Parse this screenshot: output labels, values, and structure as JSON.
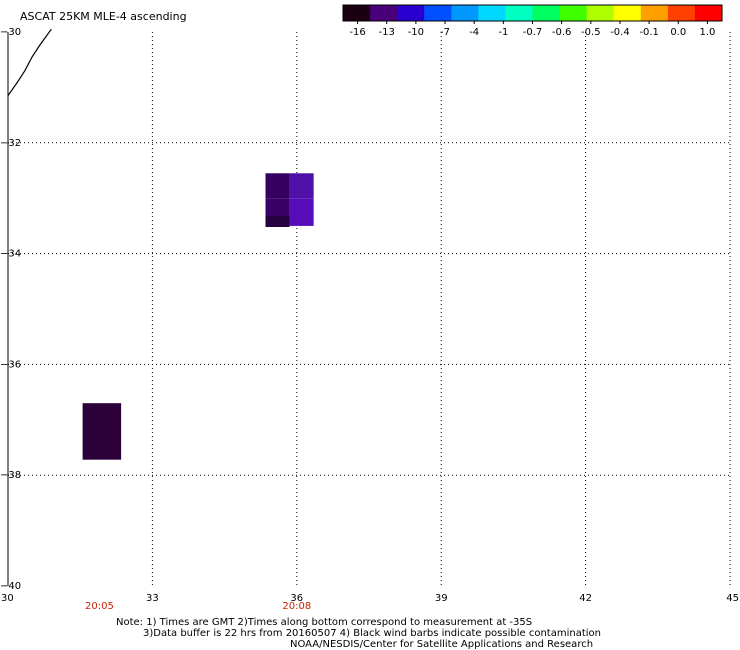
{
  "title": "ASCAT 25KM MLE-4 ascending",
  "colorbar": {
    "labels": [
      "-16",
      "-13",
      "-10",
      "-7",
      "-4",
      "-1",
      "-0.7",
      "-0.6",
      "-0.5",
      "-0.4",
      "-0.1",
      "0.0",
      "1.0"
    ],
    "colors": [
      "#1a0010",
      "#4a007a",
      "#2a00d0",
      "#0050ff",
      "#0098ff",
      "#00d8ff",
      "#00ffc0",
      "#00ff60",
      "#40ff00",
      "#b0ff00",
      "#ffff00",
      "#ffa000",
      "#ff4000",
      "#ff0000"
    ]
  },
  "axes": {
    "x_ticks": [
      30,
      33,
      36,
      39,
      42,
      45
    ],
    "y_ticks": [
      -30,
      -32,
      -34,
      -36,
      -38,
      -40
    ],
    "x_range": [
      30,
      45
    ],
    "y_range": [
      -40,
      -30
    ],
    "grid": true
  },
  "cells": [
    {
      "lon_min": 35.35,
      "lon_max": 35.85,
      "lat_min": -33.0,
      "lat_max": -32.55,
      "color": "#35005f"
    },
    {
      "lon_min": 35.85,
      "lon_max": 36.35,
      "lat_min": -33.0,
      "lat_max": -32.55,
      "color": "#4f10a8"
    },
    {
      "lon_min": 35.35,
      "lon_max": 35.85,
      "lat_min": -33.5,
      "lat_max": -33.0,
      "color": "#3a0068"
    },
    {
      "lon_min": 35.85,
      "lon_max": 36.35,
      "lat_min": -33.5,
      "lat_max": -33.0,
      "color": "#560cb8"
    },
    {
      "lon_min": 35.35,
      "lon_max": 35.85,
      "lat_min": -33.52,
      "lat_max": -33.32,
      "color": "#26003f"
    },
    {
      "lon_min": 31.55,
      "lon_max": 32.35,
      "lat_min": -37.72,
      "lat_max": -36.7,
      "color": "#2c0038"
    }
  ],
  "coastline": [
    [
      30.0,
      -31.15
    ],
    [
      30.2,
      -30.9
    ],
    [
      30.35,
      -30.7
    ],
    [
      30.5,
      -30.45
    ],
    [
      30.65,
      -30.25
    ],
    [
      30.9,
      -29.95
    ]
  ],
  "time_labels": [
    {
      "lon": 31.9,
      "text": "20:05"
    },
    {
      "lon": 36.0,
      "text": "20:08"
    }
  ],
  "notes": {
    "line1": "Note: 1) Times are GMT 2)Times along bottom correspond to measurement at -35S",
    "line2": "3)Data buffer is 22 hrs from 20160507 4) Black wind barbs indicate possible contamination",
    "line3": "NOAA/NESDIS/Center for Satellite Applications and Research"
  }
}
